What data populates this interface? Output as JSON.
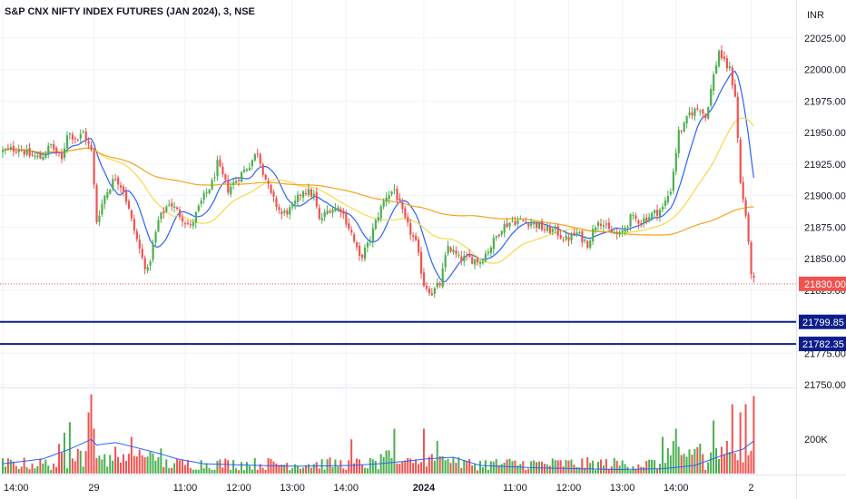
{
  "header": {
    "title": "S&P CNX NIFTY INDEX FUTURES (JAN 2024), 3, NSE",
    "currency": "INR"
  },
  "colors": {
    "up": "#4caf50",
    "down": "#ef5350",
    "ma_fast": "#2962ff",
    "ma_mid": "#f5d94b",
    "ma_slow": "#f7a21b",
    "hline": "#0d1e8c",
    "last_price": "#ef5350",
    "volume_ma": "#2962ff"
  },
  "price_axis": {
    "ticks": [
      "22025.00",
      "22000.00",
      "21975.00",
      "21950.00",
      "21925.00",
      "21900.00",
      "21875.00",
      "21850.00",
      "21825.00",
      "21800.00",
      "21775.00",
      "21750.00"
    ],
    "tick_values": [
      22025,
      22000,
      21975,
      21950,
      21925,
      21900,
      21875,
      21850,
      21825,
      21800,
      21775,
      21750
    ]
  },
  "volume_axis": {
    "label": "200K"
  },
  "time_axis": {
    "labels": [
      {
        "text": "14:00",
        "bar": 0,
        "bold": false
      },
      {
        "text": "29",
        "bar": 34,
        "bold": false
      },
      {
        "text": "11:00",
        "bar": 68,
        "bold": false
      },
      {
        "text": "12:00",
        "bar": 88,
        "bold": false
      },
      {
        "text": "13:00",
        "bar": 108,
        "bold": false
      },
      {
        "text": "14:00",
        "bar": 128,
        "bold": false
      },
      {
        "text": "2024",
        "bar": 157,
        "bold": true
      },
      {
        "text": "11:00",
        "bar": 191,
        "bold": false
      },
      {
        "text": "12:00",
        "bar": 211,
        "bold": false
      },
      {
        "text": "13:00",
        "bar": 231,
        "bold": false
      },
      {
        "text": "14:00",
        "bar": 251,
        "bold": false
      },
      {
        "text": "2",
        "bar": 279,
        "bold": false
      }
    ]
  },
  "horizontal_lines": [
    {
      "value": 21799.85,
      "label": "21799.85"
    },
    {
      "value": 21782.35,
      "label": "21782.35"
    }
  ],
  "last_price": {
    "value": 21830.0,
    "label": "21830.00"
  },
  "chart_data": {
    "type": "candlestick",
    "title": "S&P CNX NIFTY INDEX FUTURES (JAN 2024), 3, NSE",
    "interval": "3",
    "currency": "INR",
    "ylim": [
      21745,
      22035
    ],
    "anchors": [
      [
        0,
        21935
      ],
      [
        6,
        21938
      ],
      [
        10,
        21932
      ],
      [
        14,
        21930
      ],
      [
        18,
        21940
      ],
      [
        22,
        21928
      ],
      [
        24,
        21950
      ],
      [
        28,
        21945
      ],
      [
        30,
        21950
      ],
      [
        33,
        21935
      ],
      [
        35,
        21880
      ],
      [
        38,
        21900
      ],
      [
        42,
        21915
      ],
      [
        45,
        21905
      ],
      [
        48,
        21880
      ],
      [
        52,
        21850
      ],
      [
        54,
        21840
      ],
      [
        56,
        21860
      ],
      [
        58,
        21880
      ],
      [
        62,
        21895
      ],
      [
        66,
        21885
      ],
      [
        70,
        21875
      ],
      [
        74,
        21895
      ],
      [
        78,
        21910
      ],
      [
        80,
        21925
      ],
      [
        84,
        21905
      ],
      [
        88,
        21915
      ],
      [
        92,
        21925
      ],
      [
        95,
        21935
      ],
      [
        97,
        21920
      ],
      [
        100,
        21900
      ],
      [
        104,
        21885
      ],
      [
        108,
        21890
      ],
      [
        112,
        21905
      ],
      [
        116,
        21900
      ],
      [
        118,
        21880
      ],
      [
        122,
        21890
      ],
      [
        126,
        21890
      ],
      [
        130,
        21870
      ],
      [
        133,
        21850
      ],
      [
        136,
        21860
      ],
      [
        140,
        21885
      ],
      [
        143,
        21900
      ],
      [
        146,
        21905
      ],
      [
        150,
        21880
      ],
      [
        154,
        21862
      ],
      [
        157,
        21830
      ],
      [
        160,
        21823
      ],
      [
        163,
        21830
      ],
      [
        166,
        21860
      ],
      [
        170,
        21850
      ],
      [
        174,
        21850
      ],
      [
        178,
        21848
      ],
      [
        182,
        21860
      ],
      [
        186,
        21875
      ],
      [
        190,
        21880
      ],
      [
        194,
        21880
      ],
      [
        198,
        21878
      ],
      [
        202,
        21873
      ],
      [
        206,
        21872
      ],
      [
        210,
        21865
      ],
      [
        214,
        21870
      ],
      [
        218,
        21862
      ],
      [
        222,
        21882
      ],
      [
        226,
        21872
      ],
      [
        230,
        21868
      ],
      [
        234,
        21882
      ],
      [
        238,
        21880
      ],
      [
        242,
        21885
      ],
      [
        246,
        21890
      ],
      [
        249,
        21905
      ],
      [
        252,
        21950
      ],
      [
        254,
        21955
      ],
      [
        256,
        21965
      ],
      [
        260,
        21970
      ],
      [
        262,
        21962
      ],
      [
        265,
        21995
      ],
      [
        267,
        22015
      ],
      [
        269,
        22005
      ],
      [
        271,
        22000
      ],
      [
        273,
        21980
      ],
      [
        275,
        21910
      ],
      [
        277,
        21885
      ],
      [
        278,
        21860
      ],
      [
        279,
        21840
      ],
      [
        280,
        21832
      ]
    ],
    "volume_ma_points": [
      [
        0,
        0.12
      ],
      [
        15,
        0.18
      ],
      [
        25,
        0.3
      ],
      [
        33,
        0.42
      ],
      [
        35,
        0.35
      ],
      [
        42,
        0.38
      ],
      [
        46,
        0.35
      ],
      [
        52,
        0.3
      ],
      [
        58,
        0.25
      ],
      [
        65,
        0.18
      ],
      [
        75,
        0.12
      ],
      [
        95,
        0.1
      ],
      [
        110,
        0.09
      ],
      [
        130,
        0.1
      ],
      [
        140,
        0.12
      ],
      [
        150,
        0.15
      ],
      [
        158,
        0.18
      ],
      [
        168,
        0.2
      ],
      [
        178,
        0.1
      ],
      [
        200,
        0.07
      ],
      [
        230,
        0.05
      ],
      [
        246,
        0.06
      ],
      [
        258,
        0.1
      ],
      [
        268,
        0.22
      ],
      [
        276,
        0.3
      ],
      [
        280,
        0.4
      ]
    ],
    "spikes": [
      {
        "bar": 33,
        "vol": 0.97
      },
      {
        "bar": 32,
        "vol": 0.75
      },
      {
        "bar": 34,
        "vol": 0.55
      },
      {
        "bar": 25,
        "vol": 0.63
      },
      {
        "bar": 23,
        "vol": 0.5
      },
      {
        "bar": 48,
        "vol": 0.45
      },
      {
        "bar": 130,
        "vol": 0.42
      },
      {
        "bar": 146,
        "vol": 0.55
      },
      {
        "bar": 157,
        "vol": 0.55
      },
      {
        "bar": 162,
        "vol": 0.4
      },
      {
        "bar": 246,
        "vol": 0.45
      },
      {
        "bar": 251,
        "vol": 0.55
      },
      {
        "bar": 265,
        "vol": 0.65
      },
      {
        "bar": 270,
        "vol": 0.4
      },
      {
        "bar": 272,
        "vol": 0.85
      },
      {
        "bar": 275,
        "vol": 0.75
      },
      {
        "bar": 277,
        "vol": 0.85
      },
      {
        "bar": 280,
        "vol": 0.95
      }
    ],
    "moving_averages": [
      {
        "color_key": "ma_fast",
        "period": 10
      },
      {
        "color_key": "ma_mid",
        "period": 30
      },
      {
        "color_key": "ma_slow",
        "period": 120
      }
    ],
    "volume_ylim": [
      0,
      1
    ],
    "volume_tick": "200K",
    "volume_tick_value": 0.42
  }
}
